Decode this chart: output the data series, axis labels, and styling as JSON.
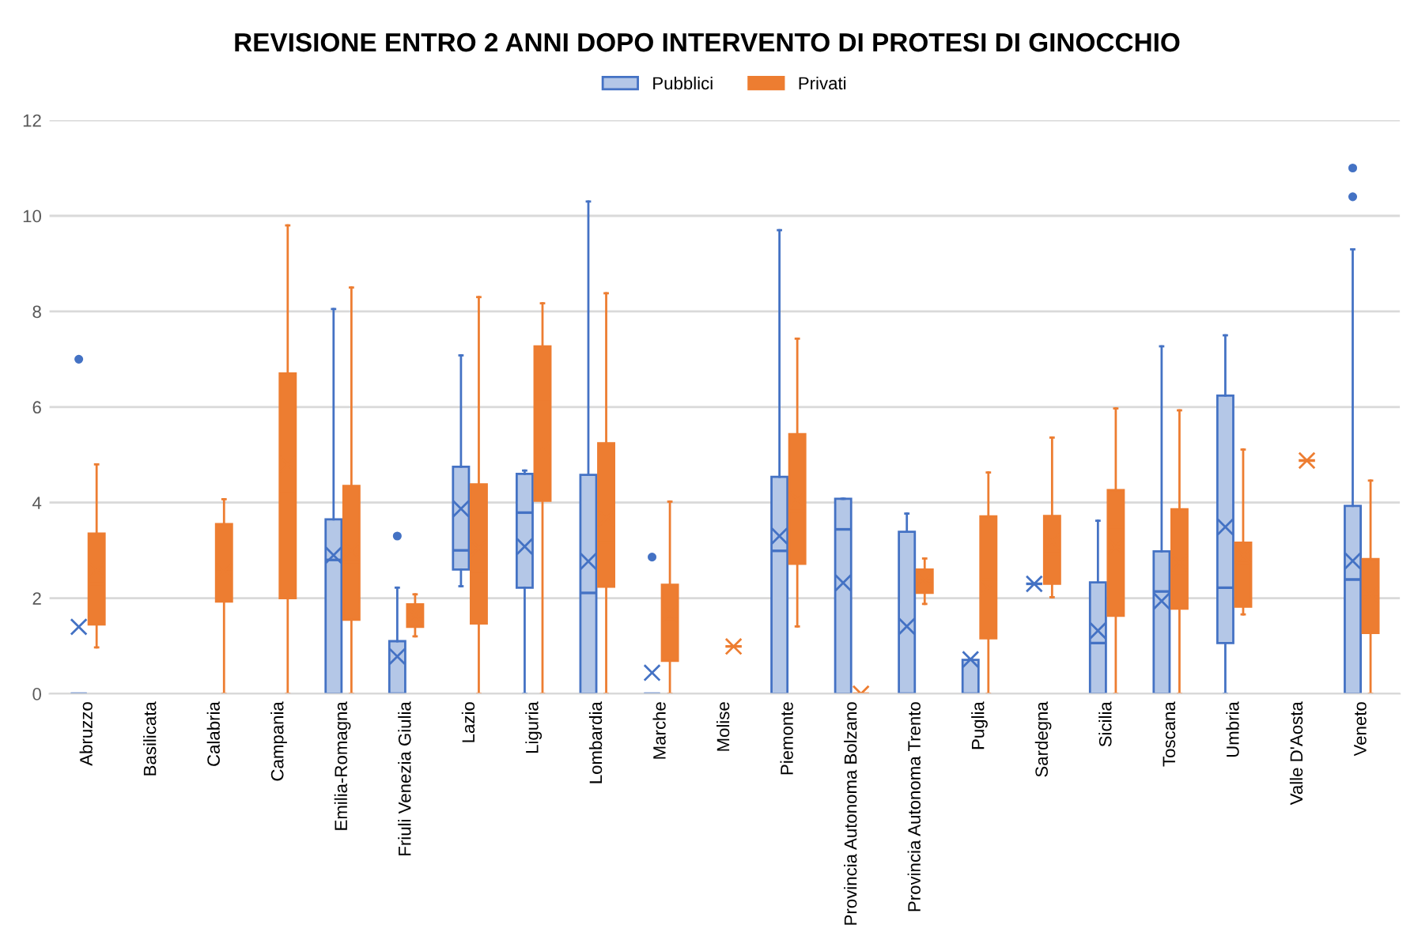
{
  "chart_data": {
    "type": "box",
    "title": "REVISIONE ENTRO 2 ANNI DOPO INTERVENTO DI PROTESI DI GINOCCHIO",
    "categories": [
      "Abruzzo",
      "Basilicata",
      "Calabria",
      "Campania",
      "Emilia-Romagna",
      "Friuli Venezia Giulia",
      "Lazio",
      "Liguria",
      "Lombardia",
      "Marche",
      "Molise",
      "Piemonte",
      "Provincia Autonoma Bolzano",
      "Provincia Autonoma Trento",
      "Puglia",
      "Sardegna",
      "Sicilia",
      "Toscana",
      "Umbria",
      "Valle D'Aosta",
      "Veneto"
    ],
    "ylim": [
      0,
      12
    ],
    "yticks": [
      0,
      2,
      4,
      6,
      8,
      10,
      12
    ],
    "grid": "y",
    "legend": "top",
    "marker": "cross",
    "series": [
      {
        "name": "Pubblici",
        "color": "#4472c4",
        "boxes": [
          {
            "low": 0,
            "q1": 0,
            "median": 0,
            "q3": 0,
            "high": 0,
            "mean": 1.4,
            "outliers": [
              7.0
            ]
          },
          null,
          null,
          null,
          {
            "low": 0,
            "q1": 0,
            "median": 2.8,
            "q3": 3.65,
            "high": 8.05,
            "mean": 2.9
          },
          {
            "low": 0,
            "q1": 0,
            "median": 0,
            "q3": 1.1,
            "high": 2.22,
            "mean": 0.78,
            "outliers": [
              3.3
            ]
          },
          {
            "low": 2.25,
            "q1": 2.6,
            "median": 3.0,
            "q3": 4.75,
            "high": 7.08,
            "mean": 3.87
          },
          {
            "low": 0,
            "q1": 2.22,
            "median": 3.79,
            "q3": 4.6,
            "high": 4.67,
            "mean": 3.08
          },
          {
            "low": 0,
            "q1": 0,
            "median": 2.11,
            "q3": 4.58,
            "high": 10.3,
            "mean": 2.77
          },
          {
            "low": 0,
            "q1": 0,
            "median": 0,
            "q3": 0,
            "high": 0,
            "mean": 0.44,
            "outliers": [
              2.86
            ]
          },
          null,
          {
            "low": 0,
            "q1": 0,
            "median": 2.99,
            "q3": 4.54,
            "high": 9.7,
            "mean": 3.3
          },
          {
            "low": 0,
            "q1": 0,
            "median": 3.44,
            "q3": 4.08,
            "high": 4.08,
            "mean": 2.32
          },
          {
            "low": 0,
            "q1": 0,
            "median": 0,
            "q3": 3.39,
            "high": 3.77,
            "mean": 1.41
          },
          {
            "low": 0,
            "q1": 0,
            "median": 0,
            "q3": 0.71,
            "high": 0.71,
            "mean": 0.72
          },
          {
            "low": 2.3,
            "q1": 2.3,
            "median": 2.3,
            "q3": 2.3,
            "high": 2.3,
            "mean": 2.3
          },
          {
            "low": 0,
            "q1": 0,
            "median": 1.06,
            "q3": 2.33,
            "high": 3.62,
            "mean": 1.32
          },
          {
            "low": 0,
            "q1": 0,
            "median": 2.14,
            "q3": 2.98,
            "high": 7.27,
            "mean": 1.94
          },
          {
            "low": 0,
            "q1": 1.06,
            "median": 2.22,
            "q3": 6.24,
            "high": 7.5,
            "mean": 3.49
          },
          null,
          {
            "low": 0,
            "q1": 0,
            "median": 2.39,
            "q3": 3.93,
            "high": 9.3,
            "mean": 2.78,
            "outliers": [
              10.4,
              11.0
            ]
          }
        ]
      },
      {
        "name": "Privati",
        "color": "#ed7d31",
        "boxes": [
          {
            "low": 0.97,
            "q1": 1.45,
            "median": 2.3,
            "q3": 3.35,
            "high": 4.8,
            "mean": 2.58
          },
          null,
          {
            "low": 0,
            "q1": 1.93,
            "median": 2.55,
            "q3": 3.55,
            "high": 4.07,
            "mean": 2.55
          },
          {
            "low": 0,
            "q1": 2.0,
            "median": 4.25,
            "q3": 6.7,
            "high": 9.8,
            "mean": 4.8
          },
          {
            "low": 0,
            "q1": 1.55,
            "median": 2.75,
            "q3": 4.35,
            "high": 8.5,
            "mean": 3.0
          },
          {
            "low": 1.2,
            "q1": 1.4,
            "median": 1.62,
            "q3": 1.87,
            "high": 2.08,
            "mean": 1.65
          },
          {
            "low": 0,
            "q1": 1.47,
            "median": 2.5,
            "q3": 4.38,
            "high": 8.3,
            "mean": 3.05
          },
          {
            "low": 0,
            "q1": 4.04,
            "median": 6.17,
            "q3": 7.27,
            "high": 8.17,
            "mean": 5.12
          },
          {
            "low": 0,
            "q1": 2.24,
            "median": 3.17,
            "q3": 5.24,
            "high": 8.38,
            "mean": 3.67
          },
          {
            "low": 0,
            "q1": 0.69,
            "median": 1.56,
            "q3": 2.28,
            "high": 4.02,
            "mean": 1.67
          },
          {
            "low": 0.99,
            "q1": 0.99,
            "median": 0.99,
            "q3": 0.99,
            "high": 0.99,
            "mean": 0.99
          },
          {
            "low": 1.41,
            "q1": 2.72,
            "median": 3.82,
            "q3": 5.43,
            "high": 7.43,
            "mean": 4.06
          },
          {
            "low": 0,
            "q1": 0,
            "median": 0,
            "q3": 0,
            "high": 0,
            "mean": 0
          },
          {
            "low": 1.88,
            "q1": 2.11,
            "median": 2.36,
            "q3": 2.6,
            "high": 2.83,
            "mean": 2.36
          },
          {
            "low": 0,
            "q1": 1.16,
            "median": 2.39,
            "q3": 3.71,
            "high": 4.63,
            "mean": 2.22
          },
          {
            "low": 2.02,
            "q1": 2.3,
            "median": 2.93,
            "q3": 3.72,
            "high": 5.36,
            "mean": 3.19
          },
          {
            "low": 0,
            "q1": 1.63,
            "median": 3.49,
            "q3": 4.26,
            "high": 5.97,
            "mean": 3.08
          },
          {
            "low": 0,
            "q1": 1.78,
            "median": 2.52,
            "q3": 3.86,
            "high": 5.93,
            "mean": 2.74
          },
          {
            "low": 1.66,
            "q1": 1.82,
            "median": 2.74,
            "q3": 3.16,
            "high": 5.11,
            "mean": 2.89
          },
          {
            "low": 4.88,
            "q1": 4.88,
            "median": 4.88,
            "q3": 4.88,
            "high": 4.88,
            "mean": 4.88
          },
          {
            "low": 0,
            "q1": 1.27,
            "median": 2.08,
            "q3": 2.82,
            "high": 4.46,
            "mean": 2.08
          }
        ]
      }
    ]
  }
}
